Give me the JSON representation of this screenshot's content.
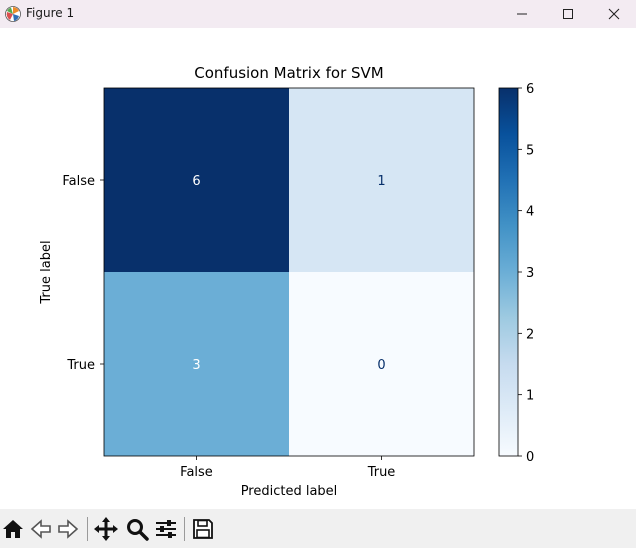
{
  "window": {
    "title": "Figure 1",
    "icons": [
      "matplotlib-logo-icon",
      "minimize-icon",
      "maximize-icon",
      "close-icon"
    ]
  },
  "chart_data": {
    "type": "heatmap",
    "title": "Confusion Matrix for SVM",
    "xlabel": "Predicted label",
    "ylabel": "True label",
    "x_categories": [
      "False",
      "True"
    ],
    "y_categories": [
      "False",
      "True"
    ],
    "values": [
      [
        6,
        1
      ],
      [
        3,
        0
      ]
    ],
    "colormap": "Blues",
    "colorbar": {
      "min": 0,
      "max": 6,
      "ticks": [
        "0",
        "1",
        "2",
        "3",
        "4",
        "5",
        "6"
      ]
    },
    "colors": {
      "low": "#f7fbff",
      "high": "#08306b"
    }
  },
  "toolbar": {
    "items": [
      "home-icon",
      "back-icon",
      "forward-icon",
      "pan-icon",
      "zoom-icon",
      "configure-subplots-icon",
      "save-icon"
    ]
  }
}
